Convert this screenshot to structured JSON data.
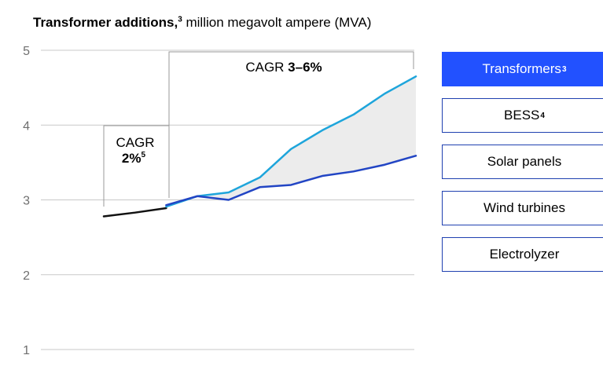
{
  "title": {
    "bold": "Transformer additions,",
    "sup": "3",
    "rest": " million megavolt ampere (MVA)"
  },
  "selector": [
    {
      "label": "Transformers",
      "sup": "3",
      "active": true
    },
    {
      "label": "BESS",
      "sup": "4",
      "active": false
    },
    {
      "label": "Solar panels",
      "sup": "",
      "active": false
    },
    {
      "label": "Wind turbines",
      "sup": "",
      "active": false
    },
    {
      "label": "Electrolyzer",
      "sup": "",
      "active": false
    }
  ],
  "annotations": {
    "cagr_hist_line1": "CAGR",
    "cagr_hist_value": "2%",
    "cagr_hist_sup": "5",
    "cagr_proj_prefix": "CAGR ",
    "cagr_proj_value": "3–6%"
  },
  "colors": {
    "historical": "#111111",
    "high": "#1ea5db",
    "low": "#2245c4",
    "band": "#ececec",
    "active_button": "#2251ff"
  },
  "chart_data": {
    "type": "line",
    "ylim": [
      1,
      5
    ],
    "yticks": [
      1,
      2,
      3,
      4,
      5
    ],
    "grid": true,
    "x": [
      0,
      1,
      2,
      3,
      4,
      5,
      6,
      7,
      8,
      9,
      10
    ],
    "series": [
      {
        "key": "historical",
        "values": [
          2.78,
          2.83,
          2.89,
          null,
          null,
          null,
          null,
          null,
          null,
          null,
          null
        ]
      },
      {
        "key": "high",
        "values": [
          null,
          null,
          2.91,
          3.05,
          3.1,
          3.3,
          3.68,
          3.93,
          4.14,
          4.42,
          4.65
        ]
      },
      {
        "key": "low",
        "values": [
          null,
          null,
          2.93,
          3.05,
          3.0,
          3.17,
          3.2,
          3.32,
          3.38,
          3.47,
          3.59
        ]
      }
    ]
  }
}
